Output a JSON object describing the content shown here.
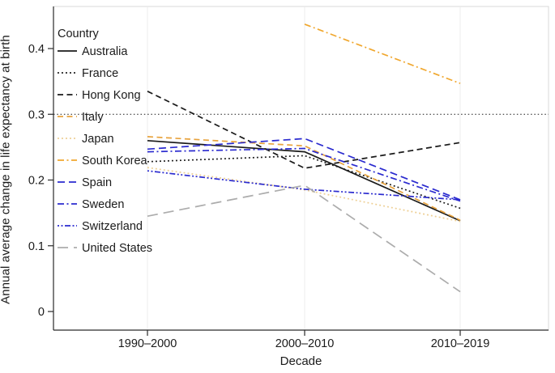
{
  "figure": {
    "xlabel": "Decade",
    "ylabel": "Annual average change in life expectancy at birth",
    "legend_title": "Country"
  },
  "chart_data": {
    "type": "line",
    "title": "",
    "xlabel": "Decade",
    "ylabel": "Annual average change in life expectancy at birth",
    "categories": [
      "1990–2000",
      "2000–2010",
      "2010–2019"
    ],
    "yticks": [
      0,
      0.1,
      0.2,
      0.3,
      0.4
    ],
    "ytick_labels": [
      "0",
      "0.1",
      "0.2",
      "0.3",
      "0.4"
    ],
    "ylim": [
      -0.028,
      0.465
    ],
    "reference_line_y": 0.3,
    "grid": "vertical-only",
    "legend_title": "Country",
    "legend_position": "top-left-inside",
    "colors": {
      "black": "#1a1a1a",
      "orange": "#e8a33d",
      "pale_orange": "#edce92",
      "golden_orange": "#f0a72e",
      "blue": "#2b2bcf",
      "gray": "#acacac",
      "reference_line": "#1a1a1a",
      "gridline": "#ececec",
      "box_border": "#d9d9d9",
      "axis": "#2a2a2a",
      "text": "#1b1b1b"
    },
    "series": [
      {
        "name": "Australia",
        "color": "#1a1a1a",
        "dash": "solid",
        "values": [
          0.26,
          0.243,
          0.138
        ]
      },
      {
        "name": "France",
        "color": "#1a1a1a",
        "dash": "dotted",
        "values": [
          0.228,
          0.237,
          0.157
        ]
      },
      {
        "name": "Hong Kong",
        "color": "#1a1a1a",
        "dash": "dashed",
        "values": [
          0.335,
          0.218,
          0.257
        ]
      },
      {
        "name": "Italy",
        "color": "#e8a33d",
        "dash": "dashed",
        "values": [
          0.266,
          0.252,
          0.139
        ]
      },
      {
        "name": "Japan",
        "color": "#edce92",
        "dash": "dotted",
        "values": [
          0.219,
          0.185,
          0.137
        ]
      },
      {
        "name": "South Korea",
        "color": "#f0a72e",
        "dash": "dashdot",
        "values": [
          null,
          0.437,
          0.347
        ]
      },
      {
        "name": "Spain",
        "color": "#2b2bcf",
        "dash": "longdash",
        "values": [
          0.247,
          0.263,
          0.17
        ]
      },
      {
        "name": "Sweden",
        "color": "#2b2bcf",
        "dash": "dashdot",
        "values": [
          0.243,
          0.248,
          0.168
        ]
      },
      {
        "name": "Switzerland",
        "color": "#2b2bcf",
        "dash": "dashdotdot",
        "values": [
          0.214,
          0.186,
          0.17
        ]
      },
      {
        "name": "United States",
        "color": "#acacac",
        "dash": "xlongdash",
        "values": [
          0.145,
          0.192,
          0.03
        ]
      }
    ]
  }
}
